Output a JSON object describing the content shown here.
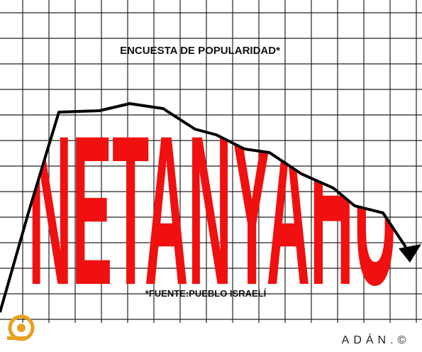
{
  "header": {
    "title": "ENCUESTA DE POPULARIDAD*"
  },
  "cartoon": {
    "name": "NETANYAHU",
    "source": "*FUENTE:PUEBLO ISRAELÍ"
  },
  "signature": "ADÁN.©"
}
